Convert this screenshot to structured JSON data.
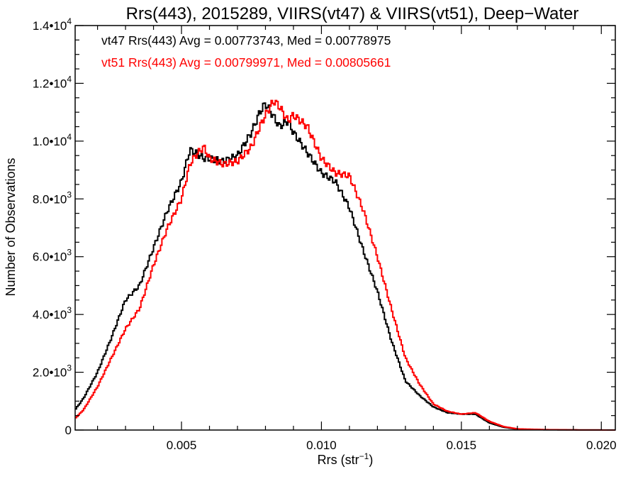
{
  "chart_data": {
    "type": "line",
    "title": "Rrs(443), 2015289, VIIRS(vt47) & VIIRS(vt51), Deep−Water",
    "xlabel": "Rrs (str",
    "xlabel_sup": "−1",
    "xlabel_close": ")",
    "ylabel": "Number of Observations",
    "xlim": [
      0.0012,
      0.0205
    ],
    "ylim": [
      0,
      14000
    ],
    "x_ticks": [
      {
        "value": 0.005,
        "label": "0.005"
      },
      {
        "value": 0.01,
        "label": "0.010"
      },
      {
        "value": 0.015,
        "label": "0.015"
      },
      {
        "value": 0.02,
        "label": "0.020"
      }
    ],
    "y_ticks": [
      {
        "value": 0,
        "mant": "0",
        "exp": ""
      },
      {
        "value": 2000,
        "mant": "2.0•10",
        "exp": "3"
      },
      {
        "value": 4000,
        "mant": "4.0•10",
        "exp": "3"
      },
      {
        "value": 6000,
        "mant": "6.0•10",
        "exp": "3"
      },
      {
        "value": 8000,
        "mant": "8.0•10",
        "exp": "3"
      },
      {
        "value": 10000,
        "mant": "1.0•10",
        "exp": "4"
      },
      {
        "value": 12000,
        "mant": "1.2•10",
        "exp": "4"
      },
      {
        "value": 14000,
        "mant": "1.4•10",
        "exp": "4"
      }
    ],
    "colors": {
      "vt47": "#000000",
      "vt51": "#ff0000"
    },
    "series": [
      {
        "key": "vt47",
        "color": "#000000",
        "legend": "vt47 Rrs(443) Avg = 0.00773743, Med = 0.00778975",
        "x": [
          0.0012,
          0.0015,
          0.002,
          0.0025,
          0.003,
          0.0035,
          0.004,
          0.0045,
          0.005,
          0.0053,
          0.0055,
          0.0058,
          0.006,
          0.0065,
          0.007,
          0.0075,
          0.0078,
          0.008,
          0.0082,
          0.0085,
          0.0088,
          0.009,
          0.0095,
          0.01,
          0.0105,
          0.011,
          0.0115,
          0.012,
          0.0125,
          0.013,
          0.0135,
          0.014,
          0.0145,
          0.015,
          0.0155,
          0.016,
          0.0165,
          0.017,
          0.018,
          0.019,
          0.0205
        ],
        "y": [
          700,
          1100,
          2000,
          3200,
          4500,
          5000,
          6300,
          7600,
          8600,
          9700,
          9600,
          9400,
          9400,
          9300,
          9500,
          10300,
          11000,
          11300,
          11000,
          10500,
          10700,
          10300,
          9600,
          8900,
          8600,
          7700,
          6200,
          4800,
          3100,
          1700,
          1200,
          800,
          600,
          550,
          550,
          250,
          100,
          30,
          10,
          5,
          0
        ]
      },
      {
        "key": "vt51",
        "color": "#ff0000",
        "legend": "vt51 Rrs(443) Avg = 0.00799971, Med = 0.00805661",
        "x": [
          0.0012,
          0.0015,
          0.002,
          0.0025,
          0.003,
          0.0035,
          0.004,
          0.0045,
          0.005,
          0.0053,
          0.0055,
          0.0058,
          0.006,
          0.0065,
          0.007,
          0.0075,
          0.0078,
          0.008,
          0.0083,
          0.0085,
          0.0088,
          0.009,
          0.0095,
          0.01,
          0.0105,
          0.011,
          0.0115,
          0.012,
          0.0125,
          0.013,
          0.0135,
          0.014,
          0.0145,
          0.015,
          0.0155,
          0.016,
          0.0165,
          0.017,
          0.018,
          0.019,
          0.0205
        ],
        "y": [
          400,
          700,
          1500,
          2500,
          3500,
          4200,
          5700,
          7000,
          8000,
          9200,
          9500,
          9800,
          9400,
          9200,
          9300,
          9800,
          10500,
          10900,
          11400,
          11200,
          10700,
          10900,
          10500,
          9400,
          8900,
          8800,
          7600,
          6000,
          4200,
          2500,
          1600,
          900,
          650,
          550,
          600,
          300,
          120,
          40,
          15,
          5,
          0
        ]
      }
    ]
  }
}
